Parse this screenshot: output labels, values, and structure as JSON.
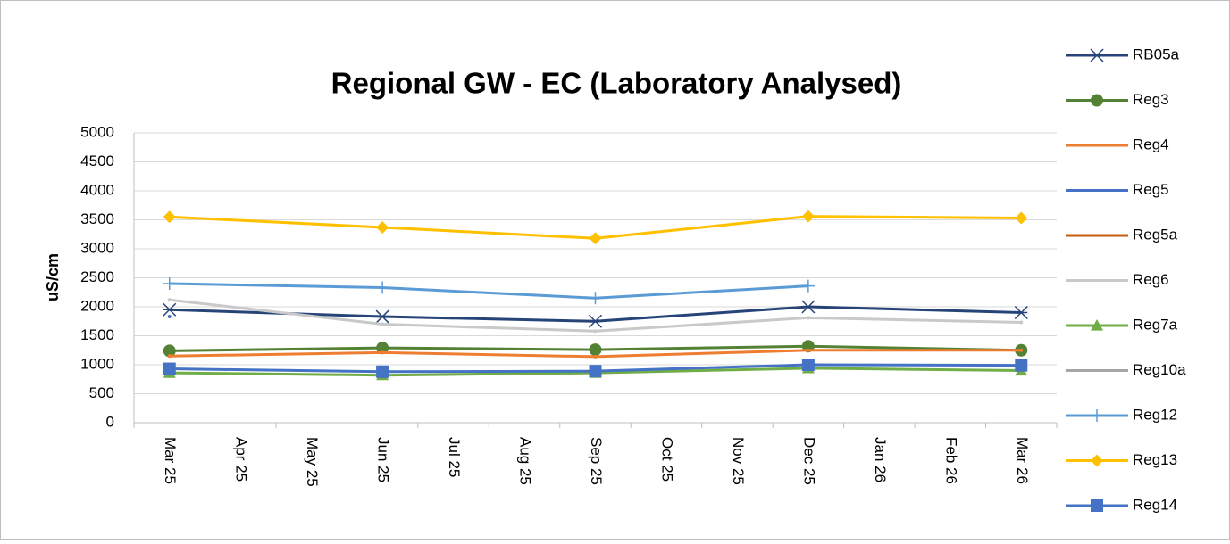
{
  "chart_data": {
    "type": "line",
    "title": "Regional GW - EC (Laboratory Analysed)",
    "y_label": "uS/cm",
    "categories": [
      "Mar 25",
      "Apr 25",
      "May 25",
      "Jun 25",
      "Jul 25",
      "Aug 25",
      "Sep 25",
      "Oct 25",
      "Nov 25",
      "Dec 25",
      "Jan 26",
      "Feb 26",
      "Mar 26"
    ],
    "x": [
      "Mar 25",
      "Jun 25",
      "Sep 25",
      "Dec 25",
      "Mar 26"
    ],
    "ylim": [
      0,
      5000
    ],
    "yticks": [
      0,
      500,
      1000,
      1500,
      2000,
      2500,
      3000,
      3500,
      4000,
      4500,
      5000
    ],
    "grid": true,
    "legend": "right",
    "series": [
      {
        "name": "RB05a",
        "color": "#264478",
        "marker": "star",
        "values": [
          1950,
          1830,
          1750,
          2000,
          1900
        ]
      },
      {
        "name": "Reg3",
        "color": "#548235",
        "marker": "circle",
        "values": [
          1240,
          1290,
          1260,
          1320,
          1250
        ]
      },
      {
        "name": "Reg4",
        "color": "#ed7d31",
        "marker": "none",
        "values": [
          1150,
          1210,
          1140,
          1250,
          1250
        ]
      },
      {
        "name": "Reg5",
        "color": "#4472c4",
        "marker": "none",
        "values": [
          1830,
          null,
          null,
          null,
          null
        ]
      },
      {
        "name": "Reg5a",
        "color": "#c55a11",
        "marker": "none",
        "values": [
          null,
          null,
          null,
          null,
          null
        ]
      },
      {
        "name": "Reg6",
        "color": "#c9c9c9",
        "marker": "none",
        "values": [
          2120,
          1700,
          1580,
          1810,
          1730
        ]
      },
      {
        "name": "Reg7a",
        "color": "#70ad47",
        "marker": "triangle",
        "values": [
          860,
          820,
          860,
          940,
          900
        ]
      },
      {
        "name": "Reg10a",
        "color": "#a5a5a5",
        "marker": "none",
        "values": [
          null,
          null,
          null,
          null,
          null
        ]
      },
      {
        "name": "Reg12",
        "color": "#5b9bd5",
        "marker": "plus",
        "values": [
          2400,
          2330,
          2150,
          2360,
          null
        ]
      },
      {
        "name": "Reg13",
        "color": "#ffc000",
        "marker": "diamond",
        "values": [
          3550,
          3370,
          3180,
          3560,
          3530
        ]
      },
      {
        "name": "Reg14",
        "color": "#4472c4",
        "marker": "square",
        "values": [
          930,
          880,
          890,
          1000,
          990
        ]
      }
    ]
  }
}
